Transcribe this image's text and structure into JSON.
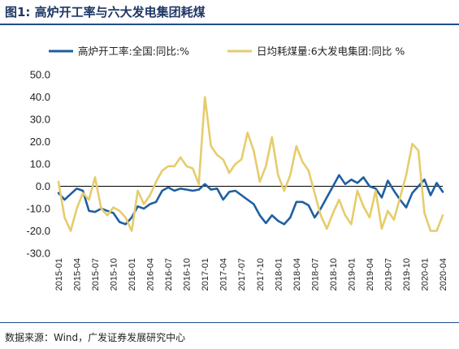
{
  "header": {
    "title": "图1: 高炉开工率与六大发电集团耗煤"
  },
  "footer": {
    "source": "数据来源：Wind，广发证券发展研究中心"
  },
  "chart_data": {
    "type": "line",
    "title": "图1: 高炉开工率与六大发电集团耗煤",
    "xlabel": "",
    "ylabel": "",
    "ylim": [
      -30,
      50
    ],
    "yticks": [
      "50.0",
      "40.0",
      "30.0",
      "20.0",
      "10.0",
      "0.0",
      "-10.0",
      "-20.0",
      "-30.0"
    ],
    "grid": false,
    "legend": "top",
    "x": [
      "2015-01",
      "2015-02",
      "2015-03",
      "2015-04",
      "2015-05",
      "2015-06",
      "2015-07",
      "2015-08",
      "2015-09",
      "2015-10",
      "2015-11",
      "2015-12",
      "2016-01",
      "2016-02",
      "2016-03",
      "2016-04",
      "2016-05",
      "2016-06",
      "2016-07",
      "2016-08",
      "2016-09",
      "2016-10",
      "2016-11",
      "2016-12",
      "2017-01",
      "2017-02",
      "2017-03",
      "2017-04",
      "2017-05",
      "2017-06",
      "2017-07",
      "2017-08",
      "2017-09",
      "2017-10",
      "2017-11",
      "2017-12",
      "2018-01",
      "2018-02",
      "2018-03",
      "2018-04",
      "2018-05",
      "2018-06",
      "2018-07",
      "2018-08",
      "2018-09",
      "2018-10",
      "2018-11",
      "2018-12",
      "2019-01",
      "2019-02",
      "2019-03",
      "2019-04",
      "2019-05",
      "2019-06",
      "2019-07",
      "2019-08",
      "2019-09",
      "2019-10",
      "2019-11",
      "2019-12",
      "2020-01",
      "2020-02",
      "2020-03",
      "2020-04"
    ],
    "xtick_labels": [
      "2015-01",
      "2015-04",
      "2015-07",
      "2015-10",
      "2016-01",
      "2016-04",
      "2016-07",
      "2016-10",
      "2017-01",
      "2017-04",
      "2017-07",
      "2017-10",
      "2018-01",
      "2018-04",
      "2018-07",
      "2018-10",
      "2019-01",
      "2019-04",
      "2019-07",
      "2019-10",
      "2020-01",
      "2020-04"
    ],
    "series": [
      {
        "name": "高炉开工率:全国:同比:%",
        "color": "#1f5fa0",
        "values": [
          -3,
          -6,
          -3.5,
          -1,
          -2,
          -11,
          -11.5,
          -10,
          -11,
          -12,
          -16,
          -17,
          -14,
          -9,
          -10,
          -8,
          -7,
          -2,
          -0.5,
          -2,
          -1,
          -1.5,
          -2,
          -1.5,
          1,
          -1.5,
          -1,
          -6,
          -2.5,
          -2,
          -4,
          -6,
          -8,
          -13,
          -16.5,
          -13,
          -15.5,
          -17,
          -14,
          -7,
          -7,
          -8.5,
          -14,
          -10,
          -5,
          0,
          5,
          1,
          3,
          1.5,
          4,
          0,
          -1,
          -5,
          2.5,
          -2,
          -6,
          -9.5,
          -3,
          0,
          3,
          -4,
          1.5,
          -2.5
        ]
      },
      {
        "name": "日均耗煤量:6大发电集团:同比 %",
        "color": "#e6cc6b",
        "values": [
          2,
          -14,
          -20,
          -10,
          -3,
          -6,
          4,
          -10,
          -13,
          -9.5,
          -11,
          -14,
          -20,
          -2,
          -8,
          -4,
          2,
          7,
          9,
          9,
          13,
          9,
          8,
          1,
          40,
          18,
          14,
          12,
          6,
          10,
          12,
          24,
          16,
          2,
          9,
          22,
          5,
          -2,
          5,
          18,
          11,
          7,
          -3,
          -13,
          -19,
          -12,
          -6,
          -13,
          -17,
          -2,
          -9,
          -14,
          -2,
          -19,
          -11,
          -15,
          -5,
          5,
          19,
          16,
          -12,
          -20,
          -20,
          -13
        ]
      }
    ]
  }
}
